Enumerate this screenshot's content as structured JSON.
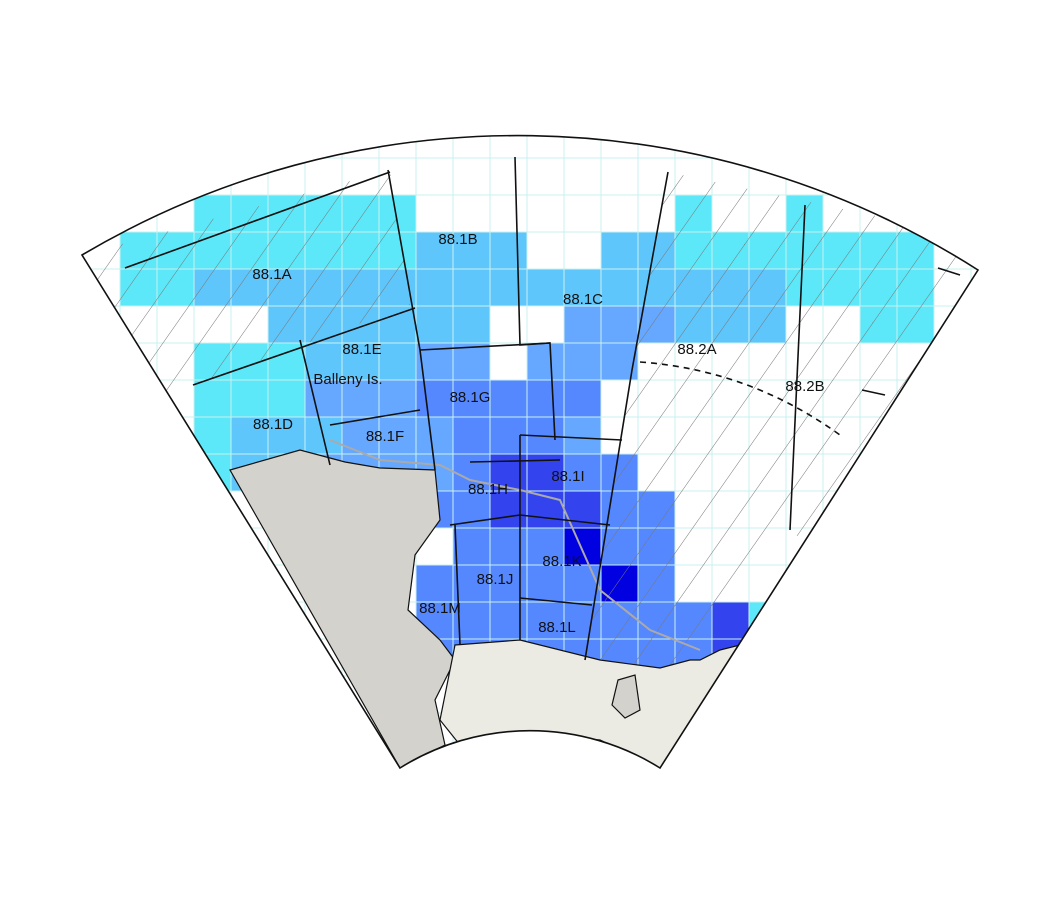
{
  "regions": [
    {
      "label": "88.1A"
    },
    {
      "label": "88.1B"
    },
    {
      "label": "88.1C"
    },
    {
      "label": "88.1D"
    },
    {
      "label": "88.1E"
    },
    {
      "label": "88.1F"
    },
    {
      "label": "88.1G"
    },
    {
      "label": "88.1H"
    },
    {
      "label": "88.1I"
    },
    {
      "label": "88.1J"
    },
    {
      "label": "88.1K"
    },
    {
      "label": "88.1L"
    },
    {
      "label": "88.1M"
    },
    {
      "label": "88.2A"
    },
    {
      "label": "88.2B"
    }
  ],
  "places": [
    {
      "label": "Balleny Is."
    }
  ]
}
